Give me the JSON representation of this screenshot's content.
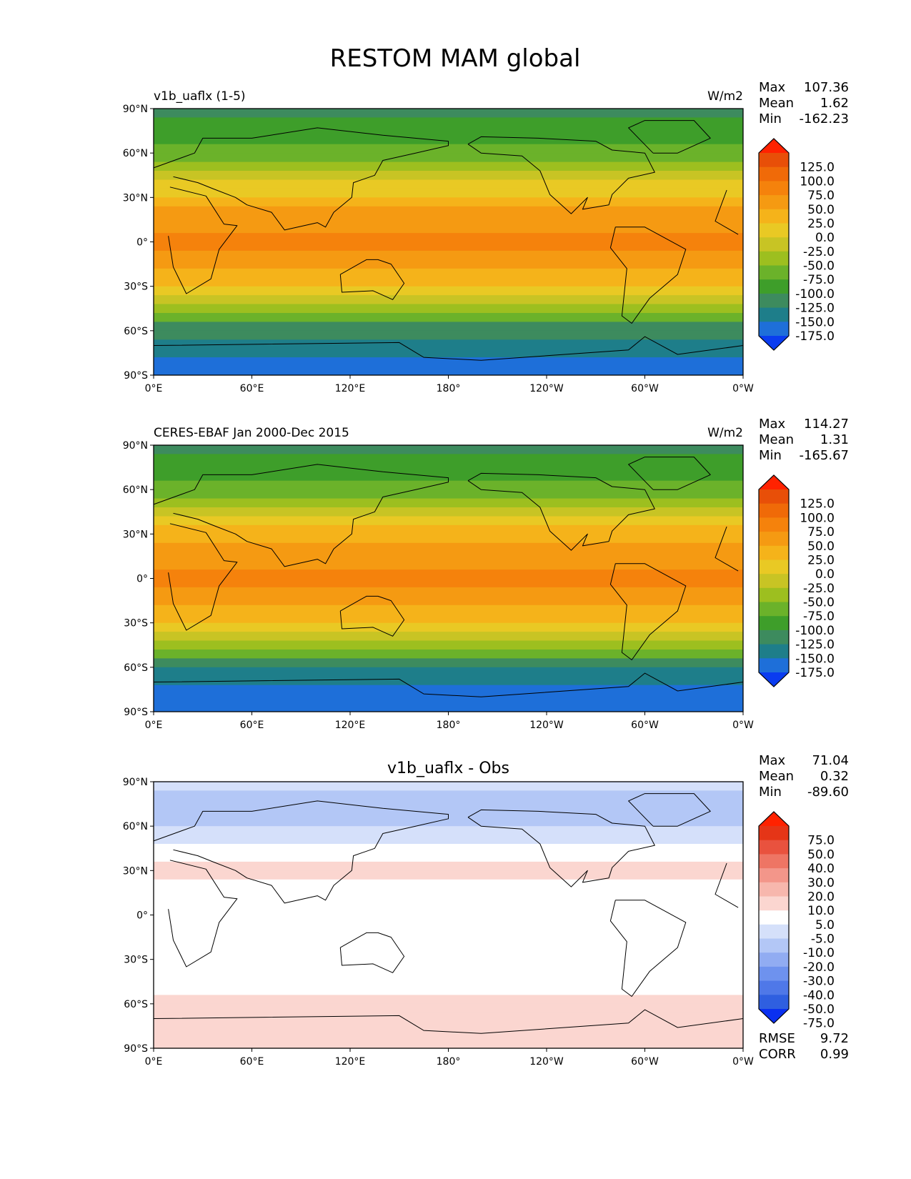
{
  "figure": {
    "title": "RESTOM MAM global"
  },
  "axes": {
    "yticks": [
      "90°N",
      "60°N",
      "30°N",
      "0°",
      "30°S",
      "60°S",
      "90°S"
    ],
    "xticks": [
      "0°E",
      "60°E",
      "120°E",
      "180°",
      "120°W",
      "60°W",
      "0°W"
    ]
  },
  "colors": {
    "field_levels": [
      "#0a3cf0",
      "#1e6fd9",
      "#1e7e8a",
      "#3d8b5e",
      "#3e9e2a",
      "#6bb22a",
      "#9dbf1f",
      "#c8c424",
      "#e9c924",
      "#f5b31a",
      "#f59a12",
      "#f5820c",
      "#f06a08",
      "#e84f08",
      "#ff2200"
    ],
    "diff_levels": [
      "#0a30f0",
      "#2f5fe0",
      "#4f78e8",
      "#6e92ee",
      "#91acf2",
      "#b3c7f6",
      "#d5e0fa",
      "#ffffff",
      "#fbd6d0",
      "#f7b7ad",
      "#f3968a",
      "#ee7564",
      "#e9523e",
      "#e53517",
      "#ff2200"
    ],
    "coast": "#000000"
  },
  "panels": [
    {
      "id": "test",
      "left_title": "v1b_uaflx (1-5)",
      "center_title": "",
      "units": "W/m2",
      "stats": [
        {
          "label": "Max",
          "value": "107.36"
        },
        {
          "label": "Mean",
          "value": "1.62"
        },
        {
          "label": "Min",
          "value": "-162.23"
        }
      ],
      "colorbar_labels": [
        "125.0",
        "100.0",
        "75.0",
        "50.0",
        "25.0",
        "0.0",
        "-25.0",
        "-50.0",
        "-75.0",
        "-100.0",
        "-125.0",
        "-150.0",
        "-175.0"
      ],
      "footer_stats": []
    },
    {
      "id": "ref",
      "left_title": "CERES-EBAF Jan 2000-Dec 2015",
      "center_title": "",
      "units": "W/m2",
      "stats": [
        {
          "label": "Max",
          "value": "114.27"
        },
        {
          "label": "Mean",
          "value": "1.31"
        },
        {
          "label": "Min",
          "value": "-165.67"
        }
      ],
      "colorbar_labels": [
        "125.0",
        "100.0",
        "75.0",
        "50.0",
        "25.0",
        "0.0",
        "-25.0",
        "-50.0",
        "-75.0",
        "-100.0",
        "-125.0",
        "-150.0",
        "-175.0"
      ],
      "footer_stats": []
    },
    {
      "id": "diff",
      "left_title": "",
      "center_title": "v1b_uaflx - Obs",
      "units": "",
      "stats": [
        {
          "label": "Max",
          "value": "71.04"
        },
        {
          "label": "Mean",
          "value": "0.32"
        },
        {
          "label": "Min",
          "value": "-89.60"
        }
      ],
      "colorbar_labels": [
        "75.0",
        "50.0",
        "40.0",
        "30.0",
        "20.0",
        "10.0",
        "5.0",
        "-5.0",
        "-10.0",
        "-20.0",
        "-30.0",
        "-40.0",
        "-50.0",
        "-75.0"
      ],
      "footer_stats": [
        {
          "label": "RMSE",
          "value": "9.72"
        },
        {
          "label": "CORR",
          "value": "0.99"
        }
      ]
    }
  ],
  "chart_data": {
    "type": "heatmap",
    "title": "RESTOM MAM global",
    "maps": [
      {
        "name": "v1b_uaflx (1-5)",
        "units": "W/m2",
        "max": 107.36,
        "mean": 1.62,
        "min": -162.23,
        "contour_levels": [
          -175,
          -150,
          -125,
          -100,
          -75,
          -50,
          -25,
          0,
          25,
          50,
          75,
          100,
          125
        ],
        "x_range": [
          0,
          360
        ],
        "y_range": [
          -90,
          90
        ],
        "zonal_profile_lat": [
          90,
          75,
          60,
          45,
          30,
          15,
          0,
          -15,
          -30,
          -45,
          -60,
          -75,
          -90
        ],
        "zonal_profile_value": [
          -105,
          -95,
          -60,
          -20,
          35,
          70,
          80,
          60,
          20,
          -45,
          -115,
          -150,
          -160
        ]
      },
      {
        "name": "CERES-EBAF Jan 2000-Dec 2015",
        "units": "W/m2",
        "max": 114.27,
        "mean": 1.31,
        "min": -165.67,
        "contour_levels": [
          -175,
          -150,
          -125,
          -100,
          -75,
          -50,
          -25,
          0,
          25,
          50,
          75,
          100,
          125
        ],
        "x_range": [
          0,
          360
        ],
        "y_range": [
          -90,
          90
        ],
        "zonal_profile_lat": [
          90,
          75,
          60,
          45,
          30,
          15,
          0,
          -15,
          -30,
          -45,
          -60,
          -75,
          -90
        ],
        "zonal_profile_value": [
          -110,
          -90,
          -60,
          -15,
          35,
          70,
          80,
          60,
          20,
          -45,
          -120,
          -155,
          -160
        ]
      },
      {
        "name": "v1b_uaflx - Obs",
        "max": 71.04,
        "mean": 0.32,
        "min": -89.6,
        "rmse": 9.72,
        "corr": 0.99,
        "contour_levels": [
          -75,
          -50,
          -40,
          -30,
          -20,
          -10,
          -5,
          5,
          10,
          20,
          30,
          40,
          50,
          75
        ],
        "x_range": [
          0,
          360
        ],
        "y_range": [
          -90,
          90
        ],
        "zonal_profile_lat": [
          90,
          75,
          60,
          45,
          30,
          15,
          0,
          -15,
          -30,
          -45,
          -60,
          -75,
          -90
        ],
        "zonal_profile_value": [
          -5,
          -15,
          -10,
          -5,
          10,
          0,
          0,
          -5,
          5,
          0,
          10,
          5,
          5
        ]
      }
    ]
  }
}
